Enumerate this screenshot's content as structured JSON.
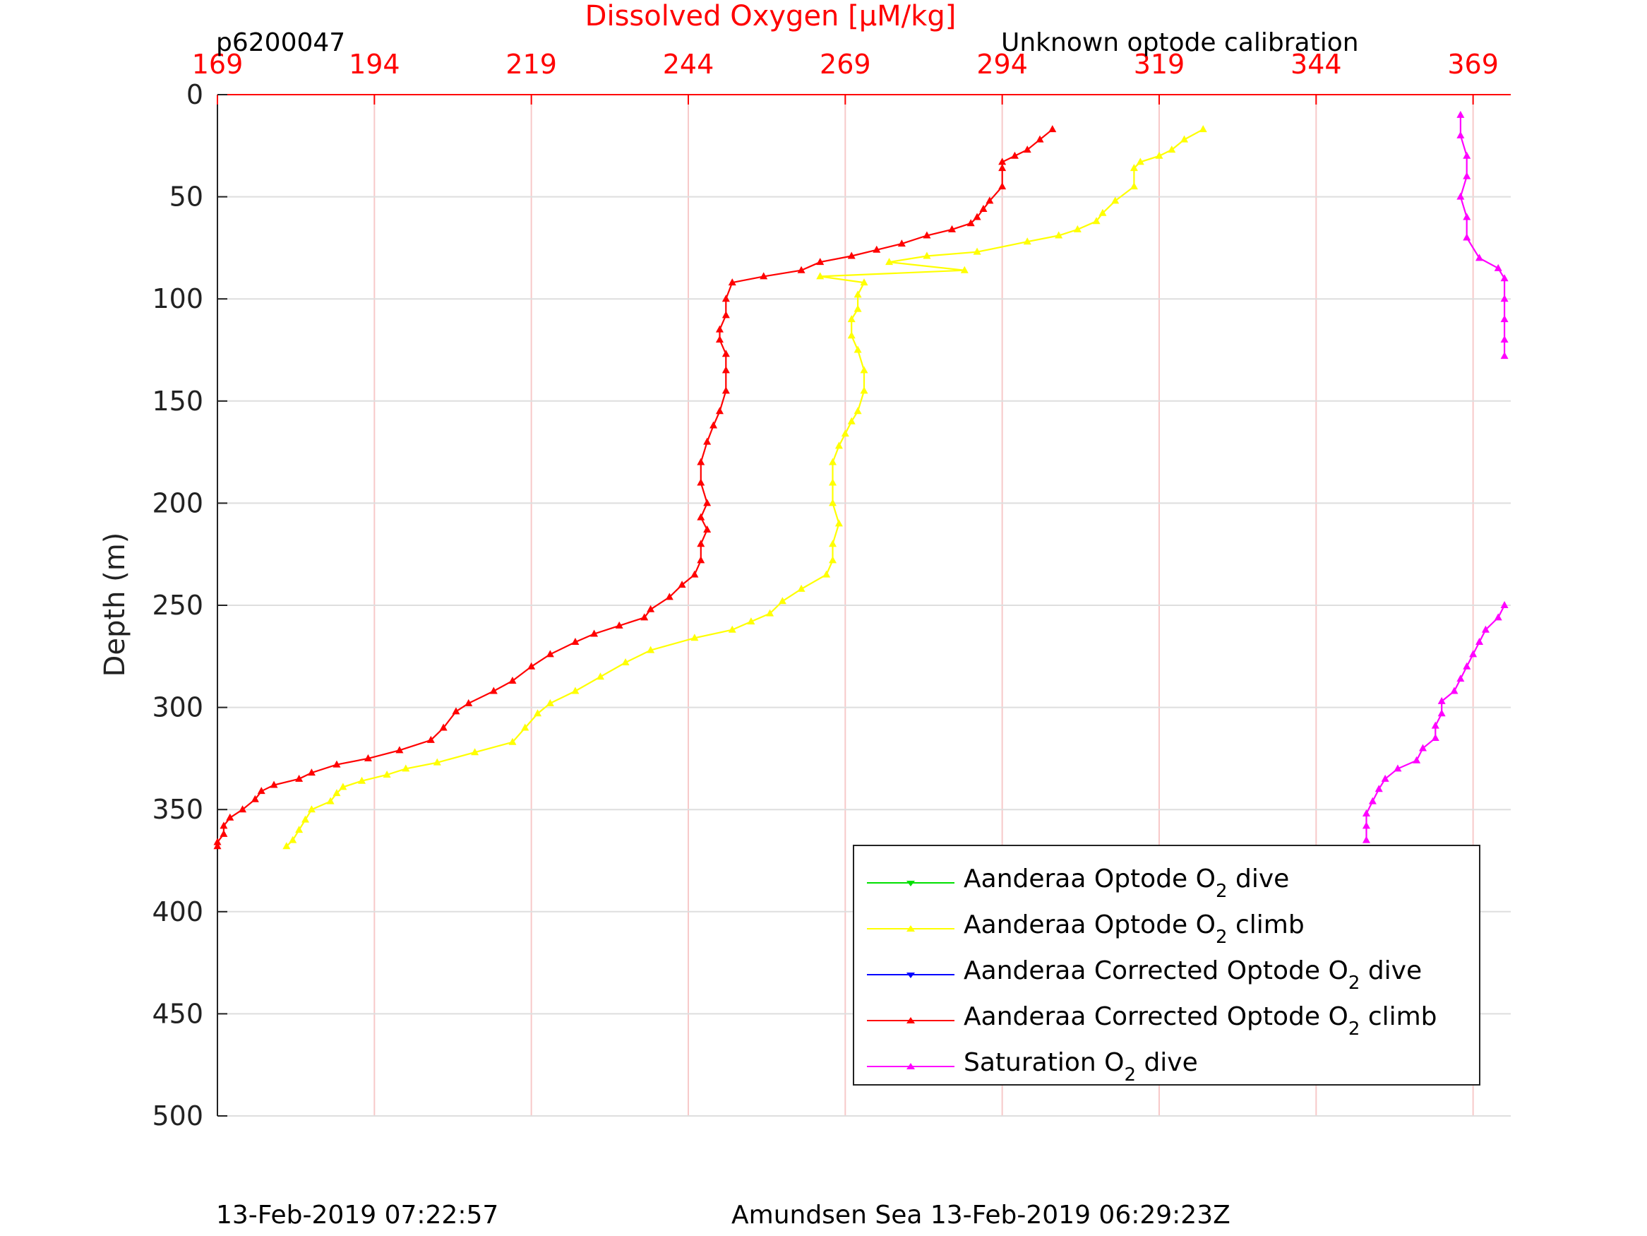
{
  "header": {
    "profile_id": "p6200047",
    "calibration_note": "Unknown optode calibration"
  },
  "footer": {
    "left": "13-Feb-2019 07:22:57",
    "center": "Amundsen Sea 13-Feb-2019 06:29:23Z"
  },
  "legend": {
    "items": [
      {
        "pre": "Aanderaa Optode O",
        "sub": "2",
        "post": " dive",
        "color": "#00e000",
        "marker": "v"
      },
      {
        "pre": "Aanderaa Optode O",
        "sub": "2",
        "post": " climb",
        "color": "#ffff00",
        "marker": "^"
      },
      {
        "pre": "Aanderaa Corrected Optode O",
        "sub": "2",
        "post": " dive",
        "color": "#0000ff",
        "marker": "v"
      },
      {
        "pre": "Aanderaa Corrected Optode O",
        "sub": "2",
        "post": " climb",
        "color": "#ff0000",
        "marker": "^"
      },
      {
        "pre": "Saturation O",
        "sub": "2",
        "post": " dive",
        "color": "#ff00ff",
        "marker": "^"
      }
    ]
  },
  "chart_data": {
    "type": "line",
    "title": "",
    "xlabel": "Dissolved Oxygen [μM/kg]",
    "xlabel_color": "#ff0000",
    "x_axis_position": "top",
    "ylabel": "Depth (m)",
    "y_reversed": true,
    "xlim": [
      169,
      375
    ],
    "ylim": [
      0,
      500
    ],
    "x_ticks": [
      169,
      194,
      219,
      244,
      269,
      294,
      319,
      344,
      369
    ],
    "y_ticks": [
      0,
      50,
      100,
      150,
      200,
      250,
      300,
      350,
      400,
      450,
      500
    ],
    "grid": true,
    "legend_position": "bottom-right",
    "series": [
      {
        "name": "Aanderaa Optode O2 climb",
        "color": "#ffff00",
        "marker": "^",
        "points": [
          [
            326,
            17
          ],
          [
            323,
            22
          ],
          [
            321,
            27
          ],
          [
            319,
            30
          ],
          [
            316,
            33
          ],
          [
            315,
            36
          ],
          [
            315,
            45
          ],
          [
            312,
            52
          ],
          [
            310,
            58
          ],
          [
            309,
            62
          ],
          [
            306,
            66
          ],
          [
            303,
            69
          ],
          [
            298,
            72
          ],
          [
            290,
            77
          ],
          [
            282,
            79
          ],
          [
            276,
            82
          ],
          [
            288,
            86
          ],
          [
            265,
            89
          ],
          [
            272,
            92
          ],
          [
            271,
            98
          ],
          [
            271,
            105
          ],
          [
            270,
            110
          ],
          [
            270,
            118
          ],
          [
            271,
            125
          ],
          [
            272,
            135
          ],
          [
            272,
            145
          ],
          [
            271,
            155
          ],
          [
            270,
            160
          ],
          [
            269,
            166
          ],
          [
            268,
            172
          ],
          [
            267,
            180
          ],
          [
            267,
            190
          ],
          [
            267,
            200
          ],
          [
            268,
            210
          ],
          [
            267,
            220
          ],
          [
            267,
            228
          ],
          [
            266,
            235
          ],
          [
            262,
            242
          ],
          [
            259,
            248
          ],
          [
            257,
            254
          ],
          [
            254,
            258
          ],
          [
            251,
            262
          ],
          [
            245,
            266
          ],
          [
            238,
            272
          ],
          [
            234,
            278
          ],
          [
            230,
            285
          ],
          [
            226,
            292
          ],
          [
            222,
            298
          ],
          [
            220,
            303
          ],
          [
            218,
            310
          ],
          [
            216,
            317
          ],
          [
            210,
            322
          ],
          [
            204,
            327
          ],
          [
            199,
            330
          ],
          [
            196,
            333
          ],
          [
            192,
            336
          ],
          [
            189,
            339
          ],
          [
            188,
            342
          ],
          [
            187,
            346
          ],
          [
            184,
            350
          ],
          [
            183,
            355
          ],
          [
            182,
            360
          ],
          [
            181,
            365
          ],
          [
            180,
            368
          ]
        ]
      },
      {
        "name": "Aanderaa Corrected Optode O2 climb",
        "color": "#ff0000",
        "marker": "^",
        "points": [
          [
            302,
            17
          ],
          [
            300,
            22
          ],
          [
            298,
            27
          ],
          [
            296,
            30
          ],
          [
            294,
            33
          ],
          [
            294,
            36
          ],
          [
            294,
            45
          ],
          [
            292,
            52
          ],
          [
            291,
            56
          ],
          [
            290,
            60
          ],
          [
            289,
            63
          ],
          [
            286,
            66
          ],
          [
            282,
            69
          ],
          [
            278,
            73
          ],
          [
            274,
            76
          ],
          [
            270,
            79
          ],
          [
            265,
            82
          ],
          [
            262,
            86
          ],
          [
            256,
            89
          ],
          [
            251,
            92
          ],
          [
            250,
            100
          ],
          [
            250,
            108
          ],
          [
            249,
            115
          ],
          [
            249,
            120
          ],
          [
            250,
            127
          ],
          [
            250,
            135
          ],
          [
            250,
            145
          ],
          [
            249,
            155
          ],
          [
            248,
            162
          ],
          [
            247,
            170
          ],
          [
            246,
            180
          ],
          [
            246,
            190
          ],
          [
            247,
            200
          ],
          [
            246,
            207
          ],
          [
            247,
            213
          ],
          [
            246,
            220
          ],
          [
            246,
            228
          ],
          [
            245,
            235
          ],
          [
            243,
            240
          ],
          [
            241,
            246
          ],
          [
            238,
            252
          ],
          [
            237,
            256
          ],
          [
            233,
            260
          ],
          [
            229,
            264
          ],
          [
            226,
            268
          ],
          [
            222,
            274
          ],
          [
            219,
            280
          ],
          [
            216,
            287
          ],
          [
            213,
            292
          ],
          [
            209,
            298
          ],
          [
            207,
            302
          ],
          [
            205,
            310
          ],
          [
            203,
            316
          ],
          [
            198,
            321
          ],
          [
            193,
            325
          ],
          [
            188,
            328
          ],
          [
            184,
            332
          ],
          [
            182,
            335
          ],
          [
            178,
            338
          ],
          [
            176,
            341
          ],
          [
            175,
            345
          ],
          [
            173,
            350
          ],
          [
            171,
            354
          ],
          [
            170,
            358
          ],
          [
            170,
            362
          ],
          [
            169,
            366
          ],
          [
            169,
            368
          ]
        ]
      },
      {
        "name": "Saturation O2 dive",
        "color": "#ff00ff",
        "marker": "^",
        "points": [
          [
            367,
            10
          ],
          [
            367,
            20
          ],
          [
            368,
            30
          ],
          [
            368,
            40
          ],
          [
            367,
            50
          ],
          [
            368,
            60
          ],
          [
            368,
            70
          ],
          [
            370,
            80
          ],
          [
            373,
            85
          ],
          [
            374,
            90
          ],
          [
            374,
            100
          ],
          [
            374,
            110
          ],
          [
            374,
            120
          ],
          [
            374,
            128
          ],
          [
            374,
            250
          ],
          [
            373,
            256
          ],
          [
            371,
            262
          ],
          [
            370,
            268
          ],
          [
            369,
            274
          ],
          [
            368,
            280
          ],
          [
            367,
            286
          ],
          [
            366,
            292
          ],
          [
            364,
            297
          ],
          [
            364,
            303
          ],
          [
            363,
            309
          ],
          [
            363,
            315
          ],
          [
            361,
            320
          ],
          [
            360,
            326
          ],
          [
            357,
            330
          ],
          [
            355,
            335
          ],
          [
            354,
            340
          ],
          [
            353,
            346
          ],
          [
            352,
            352
          ],
          [
            352,
            358
          ],
          [
            352,
            365
          ]
        ]
      }
    ]
  }
}
